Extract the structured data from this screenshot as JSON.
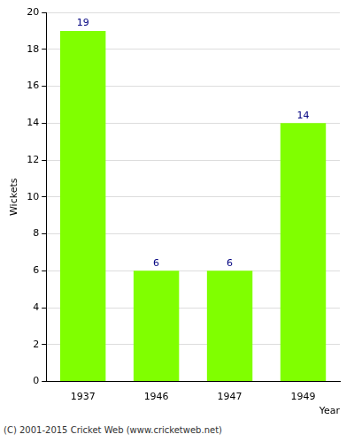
{
  "chart_data": {
    "type": "bar",
    "categories": [
      "1937",
      "1946",
      "1947",
      "1949"
    ],
    "values": [
      19,
      6,
      6,
      14
    ],
    "color": "#80ff00",
    "x_label": "Year",
    "y_label": "Wickets",
    "ylim": [
      0,
      20
    ],
    "yticks": [
      0,
      2,
      4,
      6,
      8,
      10,
      12,
      14,
      16,
      18,
      20
    ],
    "grid": true,
    "data_labels": true,
    "annotations": [
      "(C) 2001-2015 Cricket Web (www.cricketweb.net)"
    ]
  }
}
